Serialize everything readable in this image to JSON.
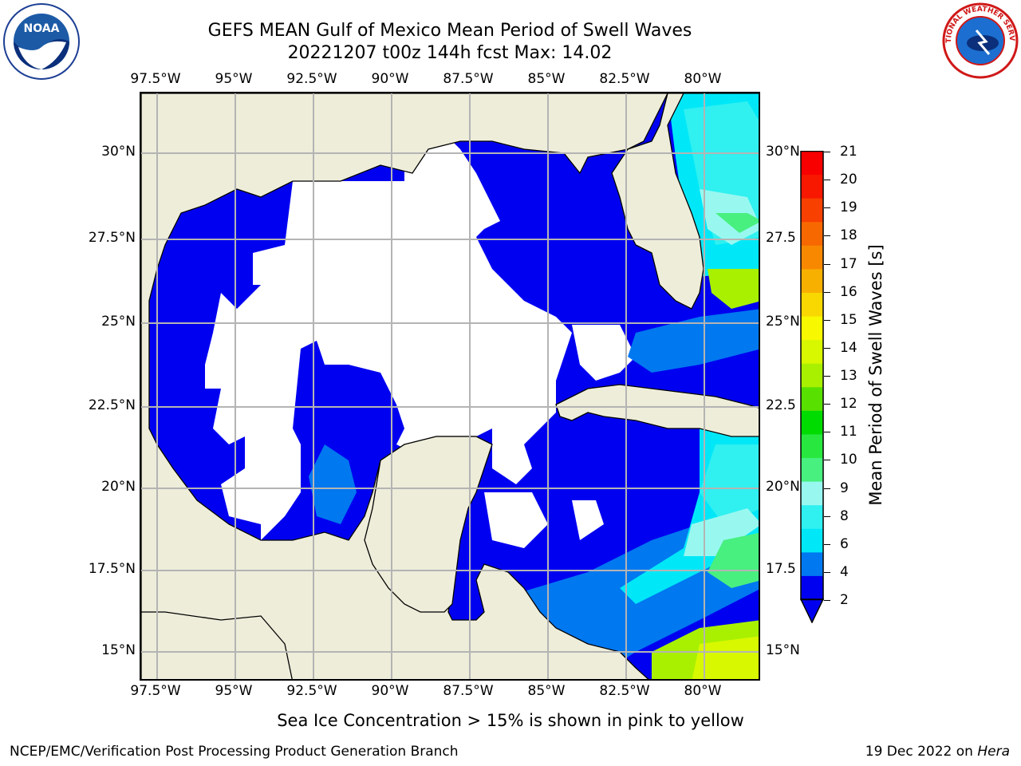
{
  "title": {
    "line1": "GEFS MEAN Gulf of Mexico Mean Period of Swell Waves",
    "line2": "20221207 t00z 144h fcst   Max: 14.02"
  },
  "map": {
    "lon_labels": [
      "97.5°W",
      "95°W",
      "92.5°W",
      "90°W",
      "87.5°W",
      "85°W",
      "82.5°W",
      "80°W"
    ],
    "lat_labels_left": [
      "30°N",
      "27.5°N",
      "25°N",
      "22.5°N",
      "20°N",
      "17.5°N",
      "15°N"
    ],
    "lat_labels_right": [
      "30°N",
      "27.5",
      "25°N",
      "22.5",
      "20°N",
      "17.5",
      "15°N"
    ],
    "land_color": "#eeedda",
    "grid_color": "#b4b4b4"
  },
  "colorbar": {
    "label": "Mean Period of Swell Waves [s]",
    "ticks": [
      "21",
      "20",
      "19",
      "18",
      "17",
      "16",
      "15",
      "14",
      "13",
      "12",
      "11",
      "10",
      "9",
      "8",
      "6",
      "4",
      "2"
    ],
    "colors": [
      "#0000f0",
      "#0078f0",
      "#00e8f8",
      "#30f0f0",
      "#98f8f0",
      "#48f080",
      "#28e840",
      "#00dc00",
      "#58e000",
      "#a8f000",
      "#d8f800",
      "#f8f800",
      "#f8d800",
      "#f8b000",
      "#f88800",
      "#f86800",
      "#f84000",
      "#f81800",
      "#f80000"
    ],
    "extend_color": "#0000f0"
  },
  "footer": {
    "note": "Sea Ice Concentration > 15% is shown in pink to yellow",
    "left": "NCEP/EMC/Verification Post Processing Product Generation Branch",
    "right_date": "19 Dec 2022 on ",
    "right_machine": "Hera"
  },
  "logos": {
    "noaa_text": "NOAA",
    "nws_text": "NATIONAL WEATHER SERVICE"
  }
}
